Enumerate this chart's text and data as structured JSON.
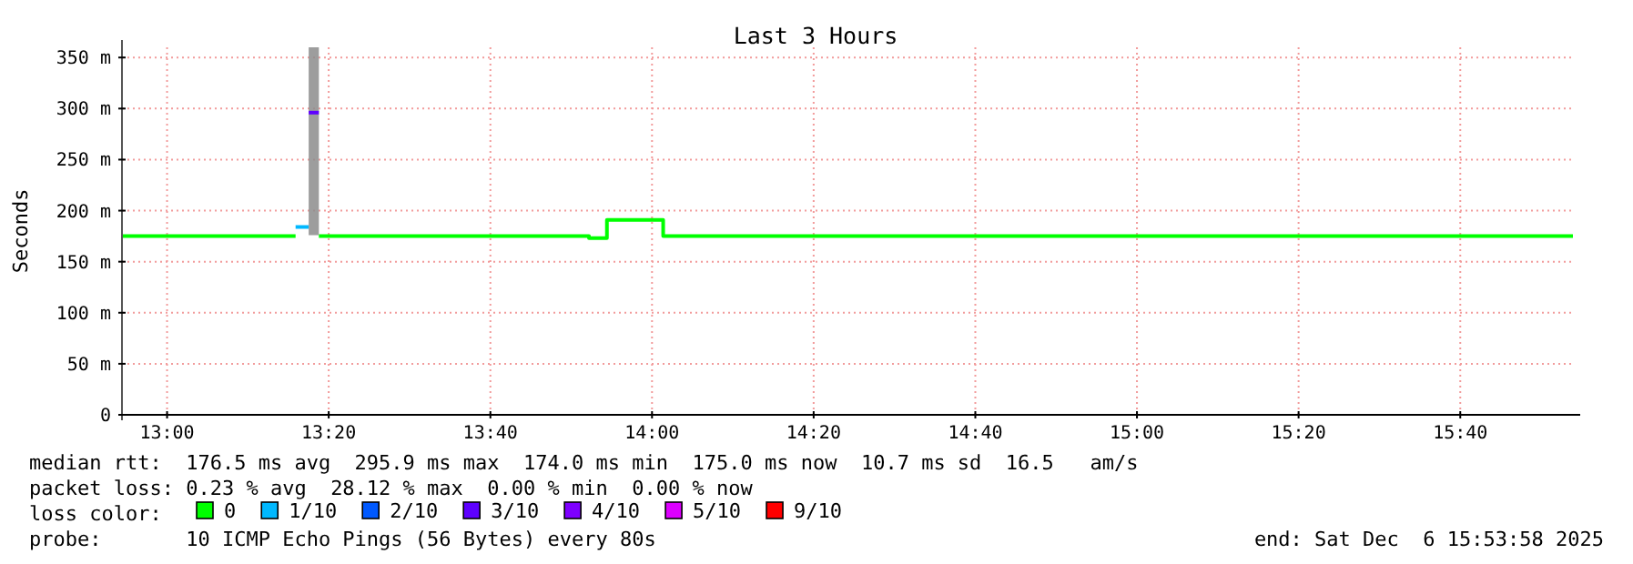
{
  "chart_data": {
    "type": "step",
    "title": "Last 3 Hours",
    "ylabel": "Seconds",
    "legend_title": "loss color:",
    "legend": "bottom",
    "grid": true,
    "xlim": [
      12.907,
      15.899
    ],
    "xticks": [
      {
        "value": 13,
        "label": "13:00"
      },
      {
        "value": 13.3333,
        "label": "13:20"
      },
      {
        "value": 13.6667,
        "label": "13:40"
      },
      {
        "value": 14,
        "label": "14:00"
      },
      {
        "value": 14.3333,
        "label": "14:20"
      },
      {
        "value": 14.6667,
        "label": "14:40"
      },
      {
        "value": 15,
        "label": "15:00"
      },
      {
        "value": 15.3333,
        "label": "15:20"
      },
      {
        "value": 15.6667,
        "label": "15:40"
      }
    ],
    "ylim": [
      0,
      360
    ],
    "yticks": [
      0,
      {
        "value": 50,
        "label": "50 m"
      },
      {
        "value": 100,
        "label": "100 m"
      },
      {
        "value": 150,
        "label": "150 m"
      },
      {
        "value": 200,
        "label": "200 m"
      },
      {
        "value": 250,
        "label": "250 m"
      },
      {
        "value": 300,
        "label": "300 m"
      },
      {
        "value": 350,
        "label": "350 m"
      }
    ],
    "series": [
      {
        "name": "0",
        "color": "#00ff00",
        "x": [
          12.907,
          13.265,
          13.313,
          13.87,
          13.907,
          14.023,
          15.899
        ],
        "values": [
          175,
          null,
          175,
          173,
          191,
          175,
          175
        ]
      },
      {
        "name": "1/10",
        "color": "#00b8ff",
        "x": [
          13.265,
          13.292
        ],
        "values": [
          184,
          184
        ]
      },
      {
        "name": "2/10",
        "color": "#0059ff"
      },
      {
        "name": "3/10",
        "color": "#5e00ff",
        "x": [
          13.292,
          13.313
        ],
        "values": [
          296,
          296
        ],
        "lower": [
          176,
          176
        ],
        "upper": [
          360,
          360
        ]
      },
      {
        "name": "4/10",
        "color": "#7e00ff"
      },
      {
        "name": "5/10",
        "color": "#dd00ff"
      },
      {
        "name": "9/10",
        "color": "#ff0000"
      }
    ],
    "annotations": [
      "median rtt:  176.5 ms avg  295.9 ms max  174.0 ms min  175.0 ms now  10.7 ms sd  16.5   am/s",
      "packet loss: 0.23 % avg  28.12 % max  0.00 % min  0.00 % now",
      "probe:       10 ICMP Echo Pings (56 Bytes) every 80s",
      "end: Sat Dec  6 15:53:58 2025"
    ]
  }
}
